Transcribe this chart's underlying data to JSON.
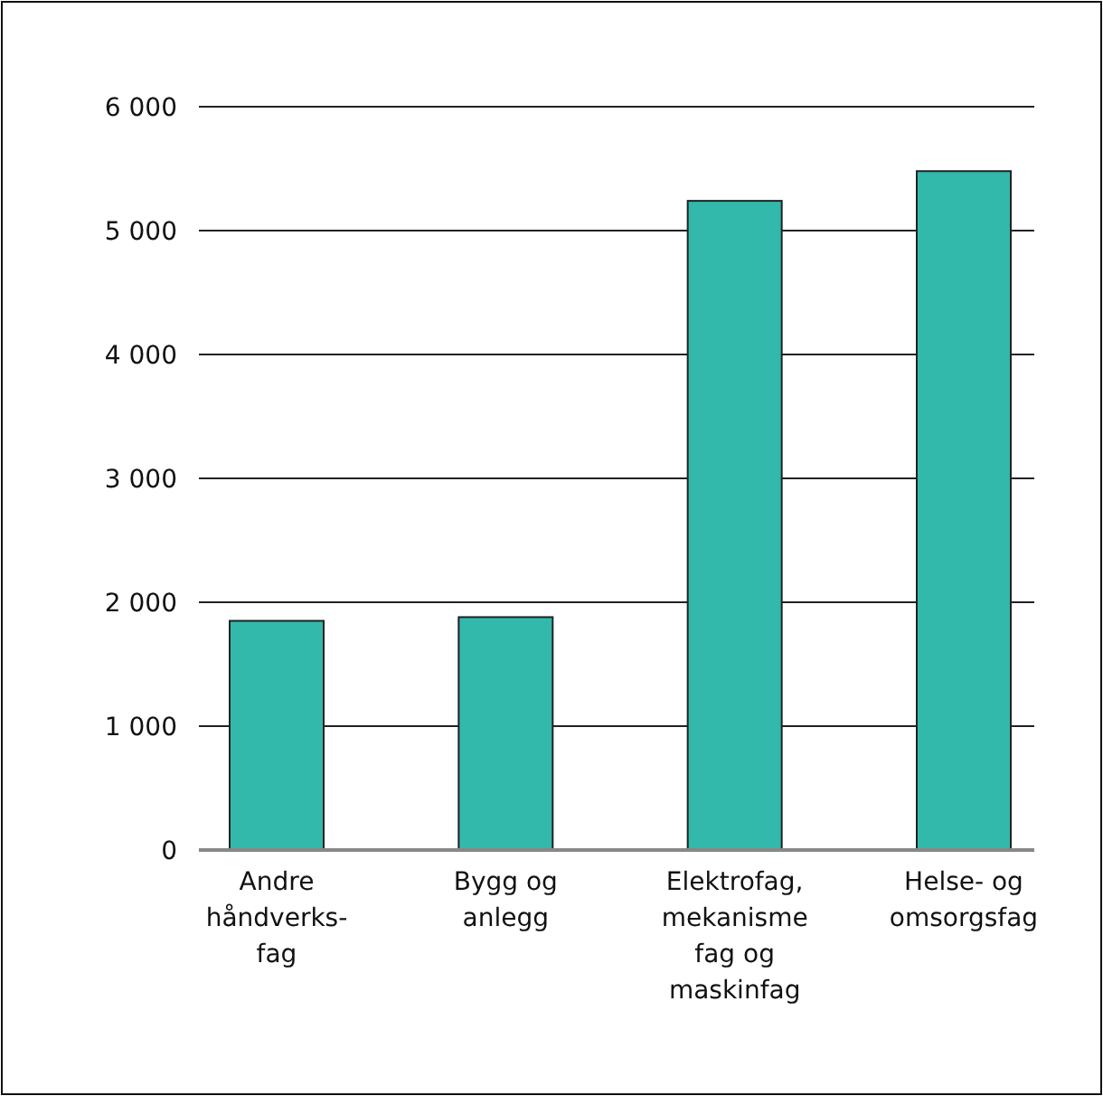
{
  "chart_data": {
    "type": "bar",
    "categories": [
      "Andre\nhåndverks-\nfag",
      "Bygg og\nanlegg",
      "Elektrofag,\nmekanisme\nfag og\nmaskinfag",
      "Helse- og\nomsorgsfag"
    ],
    "values": [
      1850,
      1880,
      5240,
      5480
    ],
    "color": "#33b8ac",
    "ylim": [
      0,
      6000
    ],
    "yticks": [
      {
        "value": 0,
        "label": "0"
      },
      {
        "value": 1000,
        "label": "1 000"
      },
      {
        "value": 2000,
        "label": "2 000"
      },
      {
        "value": 3000,
        "label": "3 000"
      },
      {
        "value": 4000,
        "label": "4 000"
      },
      {
        "value": 5000,
        "label": "5 000"
      },
      {
        "value": 6000,
        "label": "6 000"
      }
    ],
    "grid": "y"
  }
}
